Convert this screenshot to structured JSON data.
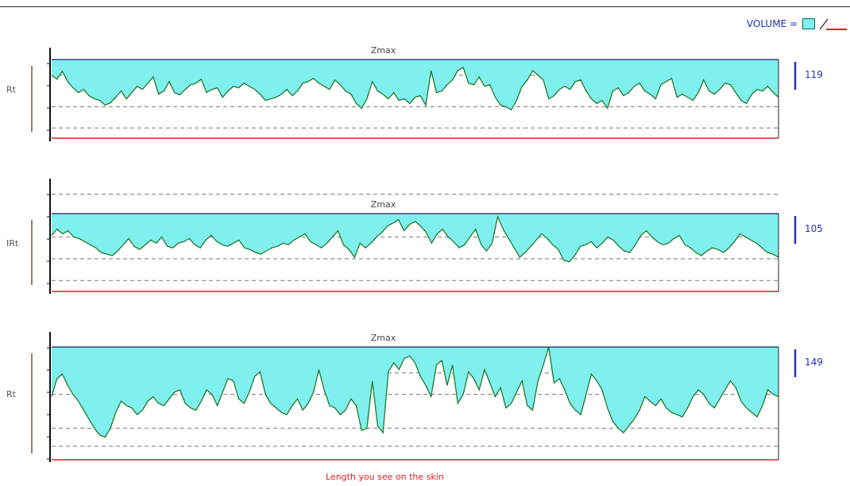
{
  "legend": {
    "label": "VOLUME =",
    "swatch_color": "#7ff0ee",
    "line_color": "#e02020"
  },
  "colors": {
    "fill": "#7ff0ee",
    "profile_stroke": "#1f7a2a",
    "zmax_line": "#1c1c6b",
    "baseline": "#e02020",
    "rt_bar": "#7a5230",
    "value_bar": "#2a2ac8",
    "value_text": "#2a2ac8",
    "rt_text": "#555555",
    "zmax_text": "#444444",
    "grid": "#777777"
  },
  "footer": {
    "caption": "Length you see on the skin",
    "caption_color": "#e02020"
  },
  "chart_data": [
    {
      "type": "area",
      "zmax_label": "Zmax",
      "rt_label": "Rt",
      "value_label": "119",
      "y_range": [
        0,
        100
      ],
      "zmax_level": 100,
      "grid_levels": [
        80,
        40,
        13
      ],
      "grid": true,
      "profile": [
        80,
        75,
        85,
        72,
        64,
        58,
        62,
        54,
        50,
        48,
        42,
        45,
        52,
        60,
        50,
        58,
        66,
        62,
        70,
        78,
        56,
        60,
        72,
        58,
        55,
        62,
        68,
        70,
        75,
        58,
        62,
        64,
        52,
        60,
        66,
        64,
        70,
        66,
        62,
        56,
        48,
        50,
        52,
        56,
        62,
        54,
        60,
        70,
        72,
        76,
        70,
        66,
        62,
        74,
        68,
        60,
        56,
        44,
        38,
        50,
        72,
        60,
        56,
        50,
        58,
        48,
        50,
        44,
        52,
        54,
        42,
        86,
        58,
        60,
        68,
        74,
        86,
        90,
        70,
        68,
        78,
        66,
        68,
        52,
        42,
        40,
        36,
        48,
        66,
        74,
        86,
        80,
        74,
        50,
        54,
        62,
        66,
        62,
        72,
        74,
        60,
        50,
        44,
        48,
        38,
        60,
        64,
        54,
        58,
        66,
        70,
        60,
        56,
        50,
        68,
        72,
        76,
        52,
        56,
        52,
        48,
        58,
        74,
        60,
        56,
        62,
        70,
        68,
        58,
        48,
        44,
        56,
        62,
        60,
        66,
        58,
        52
      ]
    },
    {
      "type": "area",
      "zmax_label": "Zmax",
      "rt_label": "IRt",
      "value_label": "105",
      "y_range": [
        0,
        100
      ],
      "zmax_level": 100,
      "grid_levels": [
        125,
        70,
        42,
        14
      ],
      "grid": true,
      "profile": [
        72,
        80,
        74,
        78,
        70,
        68,
        64,
        60,
        56,
        50,
        48,
        46,
        52,
        60,
        68,
        58,
        54,
        60,
        66,
        62,
        70,
        58,
        56,
        62,
        64,
        68,
        60,
        56,
        66,
        72,
        64,
        60,
        58,
        62,
        66,
        56,
        54,
        50,
        48,
        52,
        56,
        58,
        62,
        60,
        66,
        70,
        74,
        64,
        60,
        56,
        62,
        70,
        78,
        60,
        54,
        44,
        62,
        56,
        62,
        70,
        76,
        84,
        88,
        92,
        78,
        86,
        90,
        84,
        76,
        62,
        74,
        80,
        70,
        64,
        56,
        60,
        70,
        80,
        60,
        52,
        62,
        96,
        80,
        68,
        56,
        44,
        50,
        58,
        66,
        74,
        68,
        60,
        54,
        40,
        38,
        46,
        58,
        60,
        64,
        56,
        62,
        70,
        66,
        58,
        52,
        50,
        60,
        72,
        78,
        70,
        64,
        60,
        62,
        68,
        72,
        60,
        56,
        50,
        46,
        52,
        56,
        54,
        50,
        56,
        64,
        74,
        70,
        66,
        62,
        56,
        50,
        48,
        44
      ]
    },
    {
      "type": "area",
      "zmax_label": "Zmax",
      "rt_label": "Rt",
      "value_label": "149",
      "y_range": [
        0,
        100
      ],
      "zmax_level": 100,
      "grid_levels": [
        100,
        77,
        58,
        28,
        12
      ],
      "grid": true,
      "profile": [
        56,
        72,
        76,
        66,
        58,
        52,
        44,
        36,
        28,
        22,
        20,
        28,
        42,
        52,
        48,
        46,
        40,
        44,
        52,
        56,
        50,
        48,
        54,
        60,
        62,
        50,
        46,
        44,
        52,
        62,
        58,
        48,
        60,
        72,
        70,
        54,
        50,
        60,
        74,
        78,
        58,
        50,
        46,
        42,
        40,
        48,
        54,
        44,
        50,
        60,
        80,
        62,
        48,
        46,
        40,
        44,
        54,
        48,
        26,
        28,
        70,
        30,
        24,
        78,
        86,
        80,
        90,
        92,
        86,
        74,
        66,
        56,
        84,
        88,
        66,
        84,
        50,
        58,
        78,
        72,
        62,
        80,
        68,
        56,
        64,
        46,
        50,
        60,
        70,
        48,
        44,
        70,
        84,
        100,
        68,
        72,
        62,
        50,
        44,
        40,
        58,
        76,
        70,
        62,
        46,
        34,
        28,
        24,
        30,
        36,
        44,
        56,
        52,
        48,
        54,
        46,
        42,
        40,
        38,
        46,
        56,
        62,
        58,
        50,
        46,
        54,
        62,
        70,
        64,
        52,
        46,
        42,
        38,
        48,
        62,
        58,
        56
      ]
    }
  ]
}
